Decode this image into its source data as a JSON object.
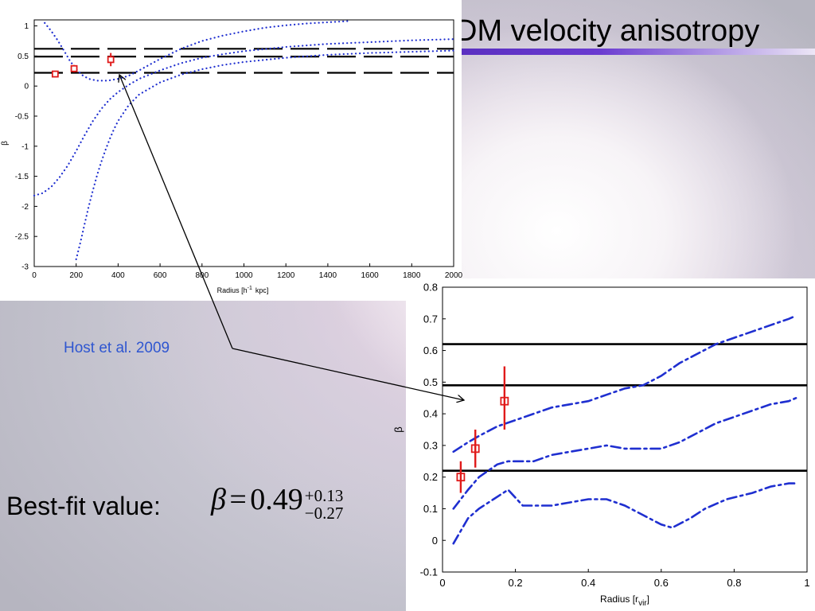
{
  "slide": {
    "title": "DM velocity anisotropy",
    "annotation": "Host et al. 2009",
    "best_fit_label": "Best-fit value:",
    "formula": {
      "symbol": "β",
      "equals": "=",
      "value": "0.49",
      "upper": "+0.13",
      "lower": "−0.27"
    }
  },
  "colors": {
    "title_bar": "#5a2fc0",
    "annotation": "#2f56d0",
    "model_curves": "#1f2fd0",
    "data_points": "#e01a1a",
    "reference_lines": "#000000"
  },
  "chart_data": [
    {
      "type": "line",
      "title": "",
      "xlabel": "Radius [h^-1 kpc]",
      "xlabel_main": "Radius [h",
      "xlabel_sup": "-1",
      "xlabel_tail": "kpc]",
      "ylabel": "β",
      "xlim": [
        0,
        2000
      ],
      "ylim": [
        -3,
        1.1
      ],
      "xticks": [
        0,
        200,
        400,
        600,
        800,
        1000,
        1200,
        1400,
        1600,
        1800,
        2000
      ],
      "yticks": [
        -3,
        -2.5,
        -2,
        -1.5,
        -1,
        -0.5,
        0,
        0.5,
        1
      ],
      "ytick_labels": [
        "-3",
        "-2.5",
        "-2",
        "-1.5",
        "-1",
        "-0.5",
        "0",
        "0.5",
        "1"
      ],
      "grid": false,
      "reference_lines": [
        0.62,
        0.49,
        0.22
      ],
      "reference_style": "dashed",
      "series": [
        {
          "style": "dotted",
          "x": [
            50,
            80,
            110,
            140,
            170,
            200,
            230,
            260,
            300,
            350,
            400,
            450,
            500,
            600,
            700,
            800,
            900,
            1000,
            1100,
            1200,
            1300,
            1400,
            1500
          ],
          "y": [
            1.05,
            0.92,
            0.77,
            0.6,
            0.42,
            0.28,
            0.18,
            0.12,
            0.09,
            0.09,
            0.12,
            0.17,
            0.26,
            0.45,
            0.62,
            0.75,
            0.84,
            0.91,
            0.97,
            1.01,
            1.04,
            1.06,
            1.08
          ]
        },
        {
          "style": "dotted",
          "x": [
            0,
            40,
            80,
            120,
            160,
            200,
            240,
            280,
            320,
            360,
            400,
            450,
            500,
            600,
            700,
            800,
            900,
            1000,
            1200,
            1400,
            1600,
            1800,
            2000
          ],
          "y": [
            -1.82,
            -1.78,
            -1.68,
            -1.52,
            -1.32,
            -1.08,
            -0.82,
            -0.58,
            -0.38,
            -0.22,
            -0.1,
            0.02,
            0.12,
            0.26,
            0.38,
            0.47,
            0.53,
            0.58,
            0.65,
            0.7,
            0.73,
            0.76,
            0.78
          ]
        },
        {
          "style": "dotted",
          "x": [
            200,
            220,
            240,
            260,
            280,
            300,
            320,
            340,
            360,
            380,
            400,
            450,
            500,
            600,
            700,
            800,
            900,
            1000,
            1200,
            1400,
            1600,
            1800,
            2000
          ],
          "y": [
            -2.88,
            -2.6,
            -2.3,
            -2.0,
            -1.73,
            -1.48,
            -1.26,
            -1.06,
            -0.88,
            -0.72,
            -0.58,
            -0.32,
            -0.14,
            0.06,
            0.19,
            0.28,
            0.35,
            0.4,
            0.47,
            0.52,
            0.55,
            0.57,
            0.59
          ]
        }
      ],
      "points": {
        "x": [
          100,
          190,
          365
        ],
        "y": [
          0.2,
          0.29,
          0.44
        ],
        "err_low": [
          0.04,
          0.06,
          0.11
        ],
        "err_high": [
          0.04,
          0.06,
          0.11
        ]
      }
    },
    {
      "type": "line",
      "title": "",
      "xlabel": "Radius [r_vir]",
      "xlabel_main": "Radius [r",
      "xlabel_sub": "vir",
      "xlabel_tail": "]",
      "ylabel": "β",
      "xlim": [
        0,
        1
      ],
      "ylim": [
        -0.1,
        0.8
      ],
      "xticks": [
        0,
        0.2,
        0.4,
        0.6,
        0.8,
        1
      ],
      "xtick_labels": [
        "0",
        "0.2",
        "0.4",
        "0.6",
        "0.8",
        "1"
      ],
      "yticks": [
        -0.1,
        0,
        0.1,
        0.2,
        0.3,
        0.4,
        0.5,
        0.6,
        0.7,
        0.8
      ],
      "ytick_labels": [
        "-0.1",
        "0",
        "0.1",
        "0.2",
        "0.3",
        "0.4",
        "0.5",
        "0.6",
        "0.7",
        "0.8"
      ],
      "grid": false,
      "reference_lines": [
        0.62,
        0.49,
        0.22
      ],
      "reference_style": "solid",
      "series": [
        {
          "style": "dashdot",
          "x": [
            0.03,
            0.07,
            0.1,
            0.15,
            0.2,
            0.25,
            0.3,
            0.35,
            0.4,
            0.45,
            0.5,
            0.55,
            0.6,
            0.65,
            0.7,
            0.75,
            0.8,
            0.85,
            0.9,
            0.95,
            0.97
          ],
          "y": [
            0.28,
            0.31,
            0.33,
            0.36,
            0.38,
            0.4,
            0.42,
            0.43,
            0.44,
            0.46,
            0.48,
            0.49,
            0.52,
            0.56,
            0.59,
            0.62,
            0.64,
            0.66,
            0.68,
            0.7,
            0.71
          ]
        },
        {
          "style": "dashdot",
          "x": [
            0.03,
            0.07,
            0.1,
            0.15,
            0.18,
            0.22,
            0.25,
            0.3,
            0.35,
            0.4,
            0.45,
            0.5,
            0.55,
            0.6,
            0.65,
            0.7,
            0.75,
            0.8,
            0.85,
            0.9,
            0.95,
            0.97
          ],
          "y": [
            0.1,
            0.16,
            0.2,
            0.24,
            0.25,
            0.25,
            0.25,
            0.27,
            0.28,
            0.29,
            0.3,
            0.29,
            0.29,
            0.29,
            0.31,
            0.34,
            0.37,
            0.39,
            0.41,
            0.43,
            0.44,
            0.45
          ]
        },
        {
          "style": "dashdot",
          "x": [
            0.03,
            0.07,
            0.1,
            0.14,
            0.18,
            0.22,
            0.25,
            0.3,
            0.35,
            0.4,
            0.45,
            0.5,
            0.55,
            0.6,
            0.63,
            0.68,
            0.72,
            0.78,
            0.85,
            0.9,
            0.95,
            0.97
          ],
          "y": [
            -0.01,
            0.07,
            0.1,
            0.13,
            0.16,
            0.11,
            0.11,
            0.11,
            0.12,
            0.13,
            0.13,
            0.11,
            0.08,
            0.05,
            0.04,
            0.07,
            0.1,
            0.13,
            0.15,
            0.17,
            0.18,
            0.18
          ]
        }
      ],
      "points": {
        "x": [
          0.05,
          0.09,
          0.17
        ],
        "y": [
          0.2,
          0.29,
          0.44
        ],
        "err_low": [
          0.05,
          0.06,
          0.09
        ],
        "err_high": [
          0.05,
          0.06,
          0.11
        ]
      }
    }
  ]
}
